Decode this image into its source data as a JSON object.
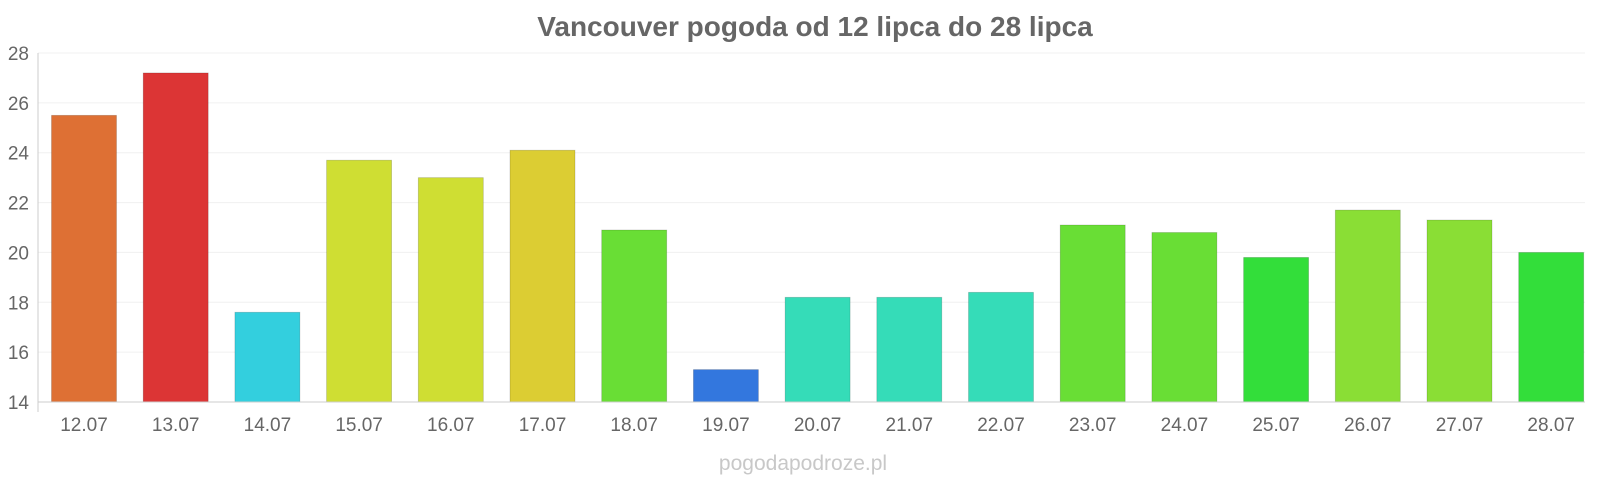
{
  "chart_data": {
    "type": "bar",
    "title": "Vancouver pogoda od 12 lipca do 28 lipca",
    "xlabel": "",
    "ylabel": "",
    "ylim": [
      14,
      28
    ],
    "yticks": [
      14,
      16,
      18,
      20,
      22,
      24,
      26,
      28
    ],
    "grid": true,
    "legend": "none",
    "categories": [
      "12.07",
      "13.07",
      "14.07",
      "15.07",
      "16.07",
      "17.07",
      "18.07",
      "19.07",
      "20.07",
      "21.07",
      "22.07",
      "23.07",
      "24.07",
      "25.07",
      "26.07",
      "27.07",
      "28.07"
    ],
    "values": [
      25.5,
      27.2,
      17.6,
      23.7,
      23.0,
      24.1,
      20.9,
      15.3,
      18.2,
      18.2,
      18.4,
      21.1,
      20.8,
      19.8,
      21.7,
      21.3,
      20.0
    ],
    "colors": [
      "#de7034",
      "#dc3535",
      "#33cfde",
      "#cfde33",
      "#cfde33",
      "#dccd33",
      "#69de35",
      "#3377de",
      "#35dcb8",
      "#35dcb8",
      "#35dcb8",
      "#69de35",
      "#69de35",
      "#33de3a",
      "#8ade35",
      "#8ade35",
      "#33de3a"
    ]
  },
  "watermark": "pogodapodroze.pl"
}
